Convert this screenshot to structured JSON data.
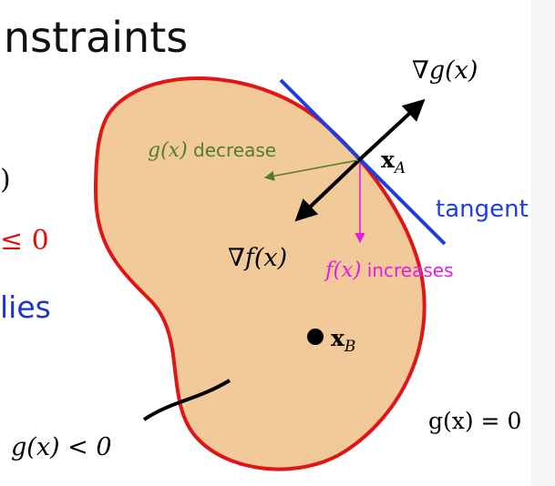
{
  "slide": {
    "title_fragment": "nstraints",
    "left_fragments": {
      "paren": ")",
      "leq": "≤ 0",
      "lies": "lies"
    }
  },
  "diagram": {
    "labels": {
      "grad_g": "∇g(x)",
      "g_decrease_math": "g(x)",
      "g_decrease_text": " decrease",
      "point_a": "x",
      "point_a_sub": "A",
      "tangent": "tangent",
      "grad_f": "∇f(x)",
      "f_increases_math": "f(x)",
      "f_increases_text": " increases",
      "point_b": "x",
      "point_b_sub": "B",
      "g_zero": "g(x) = 0",
      "g_less": "g(x) < 0"
    },
    "colors": {
      "region_fill": "#f2c998",
      "boundary": "#e01515",
      "tangent": "#1f3ee0",
      "gradients": "#000000",
      "g_decrease": "#4f7f2c",
      "f_increases": "#e21ee0"
    }
  }
}
